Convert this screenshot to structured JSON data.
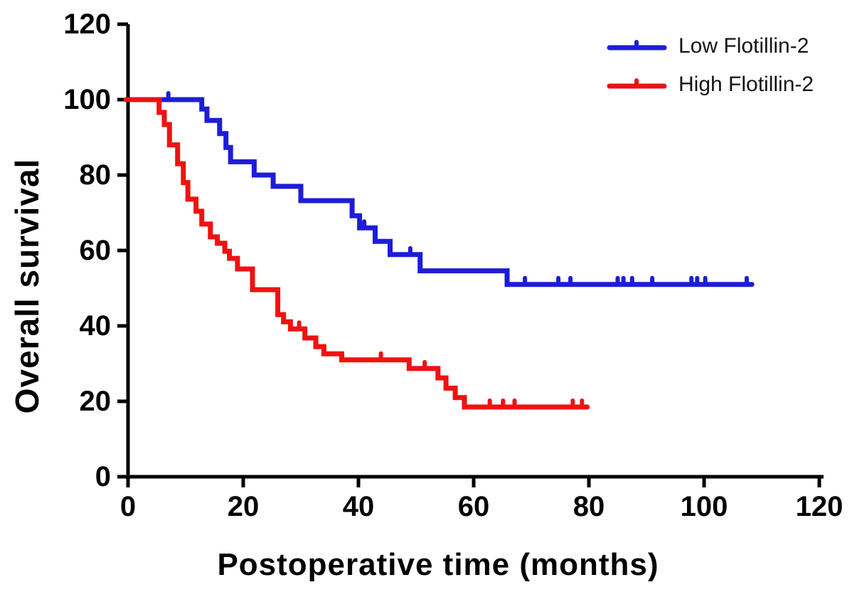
{
  "chart_data": {
    "type": "line",
    "subtype": "kaplan-meier-step-curves",
    "title": "",
    "xlabel": "Postoperative time (months)",
    "ylabel": "Overall survival",
    "xlim": [
      0,
      120
    ],
    "ylim": [
      0,
      120
    ],
    "xticks": [
      0,
      20,
      40,
      60,
      80,
      100,
      120
    ],
    "yticks": [
      0,
      20,
      40,
      60,
      80,
      100,
      120
    ],
    "grid": false,
    "legend_position": "top-right",
    "axis_color": "#000000",
    "series": [
      {
        "name": "Low Flotillin-2",
        "color": "#1d1dd8",
        "steps": [
          [
            0,
            100
          ],
          [
            12.8,
            97.5
          ],
          [
            13.7,
            94.5
          ],
          [
            15.9,
            91.0
          ],
          [
            17.0,
            87.3
          ],
          [
            17.8,
            83.5
          ],
          [
            21.9,
            80.0
          ],
          [
            25.2,
            77.0
          ],
          [
            30.0,
            73.2
          ],
          [
            38.9,
            69.2
          ],
          [
            40.2,
            66.0
          ],
          [
            42.9,
            62.4
          ],
          [
            45.5,
            58.9
          ],
          [
            50.7,
            54.6
          ],
          [
            65.8,
            51.0
          ]
        ],
        "end_time": 108.3,
        "censor_times": [
          7.0,
          41.0,
          49.0,
          68.9,
          74.7,
          76.8,
          85.0,
          86.0,
          87.5,
          91.0,
          97.8,
          98.8,
          100.2,
          107.4
        ]
      },
      {
        "name": "High Flotillin-2",
        "color": "#ee1212",
        "steps": [
          [
            0,
            100
          ],
          [
            5.4,
            96.6
          ],
          [
            6.3,
            93.4
          ],
          [
            7.2,
            88.0
          ],
          [
            8.6,
            83.0
          ],
          [
            9.6,
            78.0
          ],
          [
            10.4,
            73.6
          ],
          [
            11.8,
            70.4
          ],
          [
            12.8,
            67.0
          ],
          [
            14.3,
            63.6
          ],
          [
            15.5,
            61.9
          ],
          [
            16.8,
            59.8
          ],
          [
            17.6,
            57.9
          ],
          [
            19.0,
            55.1
          ],
          [
            21.6,
            49.6
          ],
          [
            26.0,
            43.0
          ],
          [
            27.0,
            41.1
          ],
          [
            28.2,
            39.2
          ],
          [
            30.7,
            36.8
          ],
          [
            32.6,
            34.5
          ],
          [
            34.0,
            32.6
          ],
          [
            37.1,
            31.0
          ],
          [
            48.8,
            28.7
          ],
          [
            53.8,
            26.2
          ],
          [
            55.2,
            23.5
          ],
          [
            56.8,
            21.0
          ],
          [
            58.4,
            18.5
          ]
        ],
        "end_time": 79.7,
        "censor_times": [
          29.7,
          43.9,
          51.5,
          62.8,
          65.1,
          67.1,
          77.2,
          78.8
        ]
      }
    ]
  }
}
